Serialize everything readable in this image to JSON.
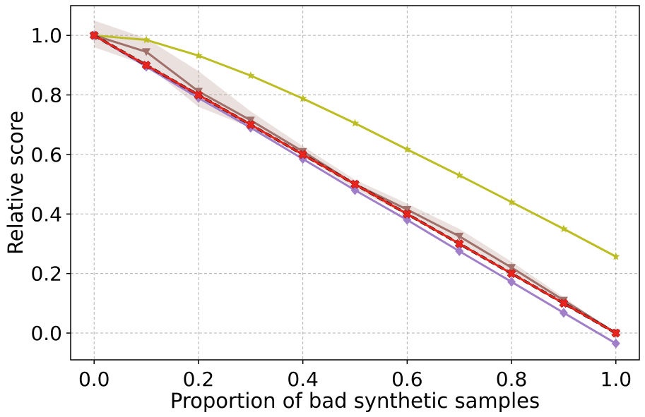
{
  "chart_data": {
    "type": "line",
    "title": "",
    "xlabel": "Proportion of bad synthetic samples",
    "ylabel": "Relative score",
    "xlim": [
      -0.045,
      1.045
    ],
    "ylim": [
      -0.09,
      1.1
    ],
    "xticks": [
      0.0,
      0.2,
      0.4,
      0.6,
      0.8,
      1.0
    ],
    "yticks": [
      0.0,
      0.2,
      0.4,
      0.6,
      0.8,
      1.0
    ],
    "xtick_labels": [
      "0.0",
      "0.2",
      "0.4",
      "0.6",
      "0.8",
      "1.0"
    ],
    "ytick_labels": [
      "0.0",
      "0.2",
      "0.4",
      "0.6",
      "0.8",
      "1.0"
    ],
    "grid": true,
    "legend": "none",
    "x": [
      0.0,
      0.1,
      0.2,
      0.3,
      0.4,
      0.5,
      0.6,
      0.7,
      0.8,
      0.9,
      1.0
    ],
    "series": [
      {
        "name": "olive-star",
        "color": "#bcbd22",
        "marker": "star",
        "values": [
          1.0,
          0.985,
          0.932,
          0.865,
          0.788,
          0.705,
          0.617,
          0.53,
          0.44,
          0.35,
          0.257
        ]
      },
      {
        "name": "brown-triangle",
        "color": "#a0706a",
        "marker": "triangle-down",
        "values": [
          1.0,
          0.945,
          0.812,
          0.715,
          0.61,
          0.5,
          0.415,
          0.325,
          0.22,
          0.11,
          0.0
        ],
        "band_lower": [
          0.96,
          0.9,
          0.76,
          0.69,
          0.595,
          0.485,
          0.395,
          0.3,
          0.2,
          0.095,
          0.0
        ],
        "band_upper": [
          1.05,
          0.99,
          0.88,
          0.745,
          0.628,
          0.515,
          0.435,
          0.35,
          0.24,
          0.12,
          0.0
        ]
      },
      {
        "name": "purple-diamond",
        "color": "#a17fc8",
        "marker": "diamond",
        "values": [
          1.0,
          0.895,
          0.79,
          0.69,
          0.585,
          0.48,
          0.38,
          0.275,
          0.172,
          0.068,
          -0.035
        ]
      },
      {
        "name": "black-dashed-reference",
        "color": "#000000",
        "marker": "none",
        "dashed": true,
        "values": [
          1.0,
          0.9,
          0.8,
          0.7,
          0.6,
          0.5,
          0.4,
          0.3,
          0.2,
          0.1,
          0.0
        ]
      },
      {
        "name": "red-x",
        "color": "#e8241c",
        "marker": "x-filled",
        "values": [
          1.0,
          0.9,
          0.8,
          0.7,
          0.6,
          0.5,
          0.4,
          0.3,
          0.2,
          0.1,
          0.0
        ]
      }
    ]
  }
}
